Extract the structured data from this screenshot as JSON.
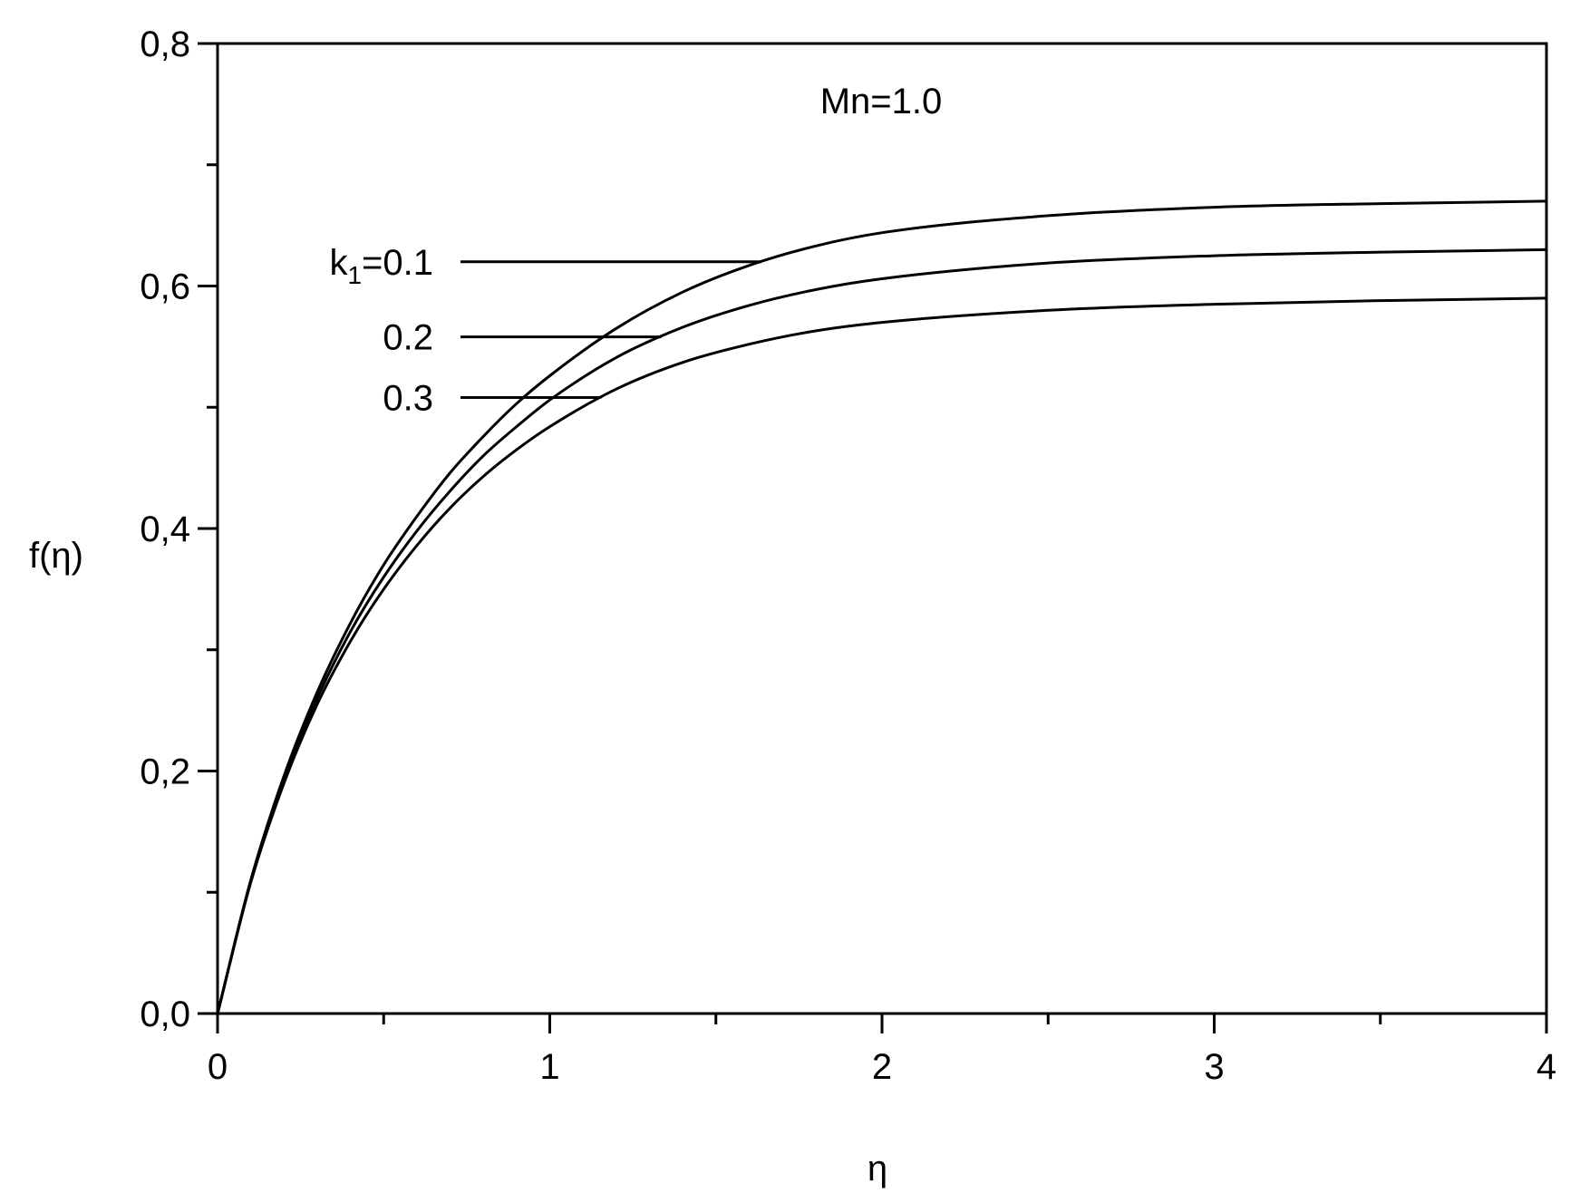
{
  "chart_data": {
    "type": "line",
    "xlim": [
      0,
      4
    ],
    "ylim": [
      0,
      0.8
    ],
    "xlabel": "η",
    "ylabel": "f(η)",
    "x_ticks": [
      0,
      1,
      2,
      3,
      4
    ],
    "x_tick_labels": [
      "0",
      "1",
      "2",
      "3",
      "4"
    ],
    "x_minor_ticks": [
      0.5,
      1.5,
      2.5,
      3.5
    ],
    "y_ticks": [
      0,
      0.2,
      0.4,
      0.6,
      0.8
    ],
    "y_tick_labels": [
      "0,0",
      "0,2",
      "0,4",
      "0,6",
      "0,8"
    ],
    "y_minor_ticks": [
      0.1,
      0.3,
      0.5,
      0.7
    ],
    "grid": false,
    "annotation": "Mn=1.0",
    "series_label_prefix": "k",
    "series_label_subscript": "1",
    "series": [
      {
        "name": "0.1",
        "label_text": "=0.1",
        "label_y": 0.62,
        "x": [
          0,
          0.1,
          0.2,
          0.3,
          0.4,
          0.5,
          0.6,
          0.7,
          0.8,
          0.9,
          1.0,
          1.2,
          1.4,
          1.6,
          1.8,
          2.0,
          2.5,
          3.0,
          3.5,
          4.0
        ],
        "y": [
          0,
          0.11,
          0.196,
          0.265,
          0.322,
          0.37,
          0.41,
          0.446,
          0.476,
          0.503,
          0.526,
          0.565,
          0.595,
          0.617,
          0.633,
          0.644,
          0.658,
          0.665,
          0.668,
          0.67
        ]
      },
      {
        "name": "0.2",
        "label_text": "0.2",
        "label_y": 0.558,
        "x": [
          0,
          0.1,
          0.2,
          0.3,
          0.4,
          0.5,
          0.6,
          0.7,
          0.8,
          0.9,
          1.0,
          1.2,
          1.4,
          1.6,
          1.8,
          2.0,
          2.5,
          3.0,
          3.5,
          4.0
        ],
        "y": [
          0,
          0.109,
          0.193,
          0.26,
          0.315,
          0.36,
          0.398,
          0.431,
          0.46,
          0.484,
          0.506,
          0.541,
          0.566,
          0.584,
          0.597,
          0.606,
          0.619,
          0.625,
          0.628,
          0.63
        ]
      },
      {
        "name": "0.3",
        "label_text": "0.3",
        "label_y": 0.508,
        "x": [
          0,
          0.1,
          0.2,
          0.3,
          0.4,
          0.5,
          0.6,
          0.7,
          0.8,
          0.9,
          1.0,
          1.2,
          1.4,
          1.6,
          1.8,
          2.0,
          2.5,
          3.0,
          3.5,
          4.0
        ],
        "y": [
          0,
          0.108,
          0.19,
          0.255,
          0.307,
          0.35,
          0.386,
          0.417,
          0.443,
          0.465,
          0.484,
          0.515,
          0.537,
          0.552,
          0.563,
          0.57,
          0.58,
          0.585,
          0.588,
          0.59
        ]
      }
    ]
  }
}
